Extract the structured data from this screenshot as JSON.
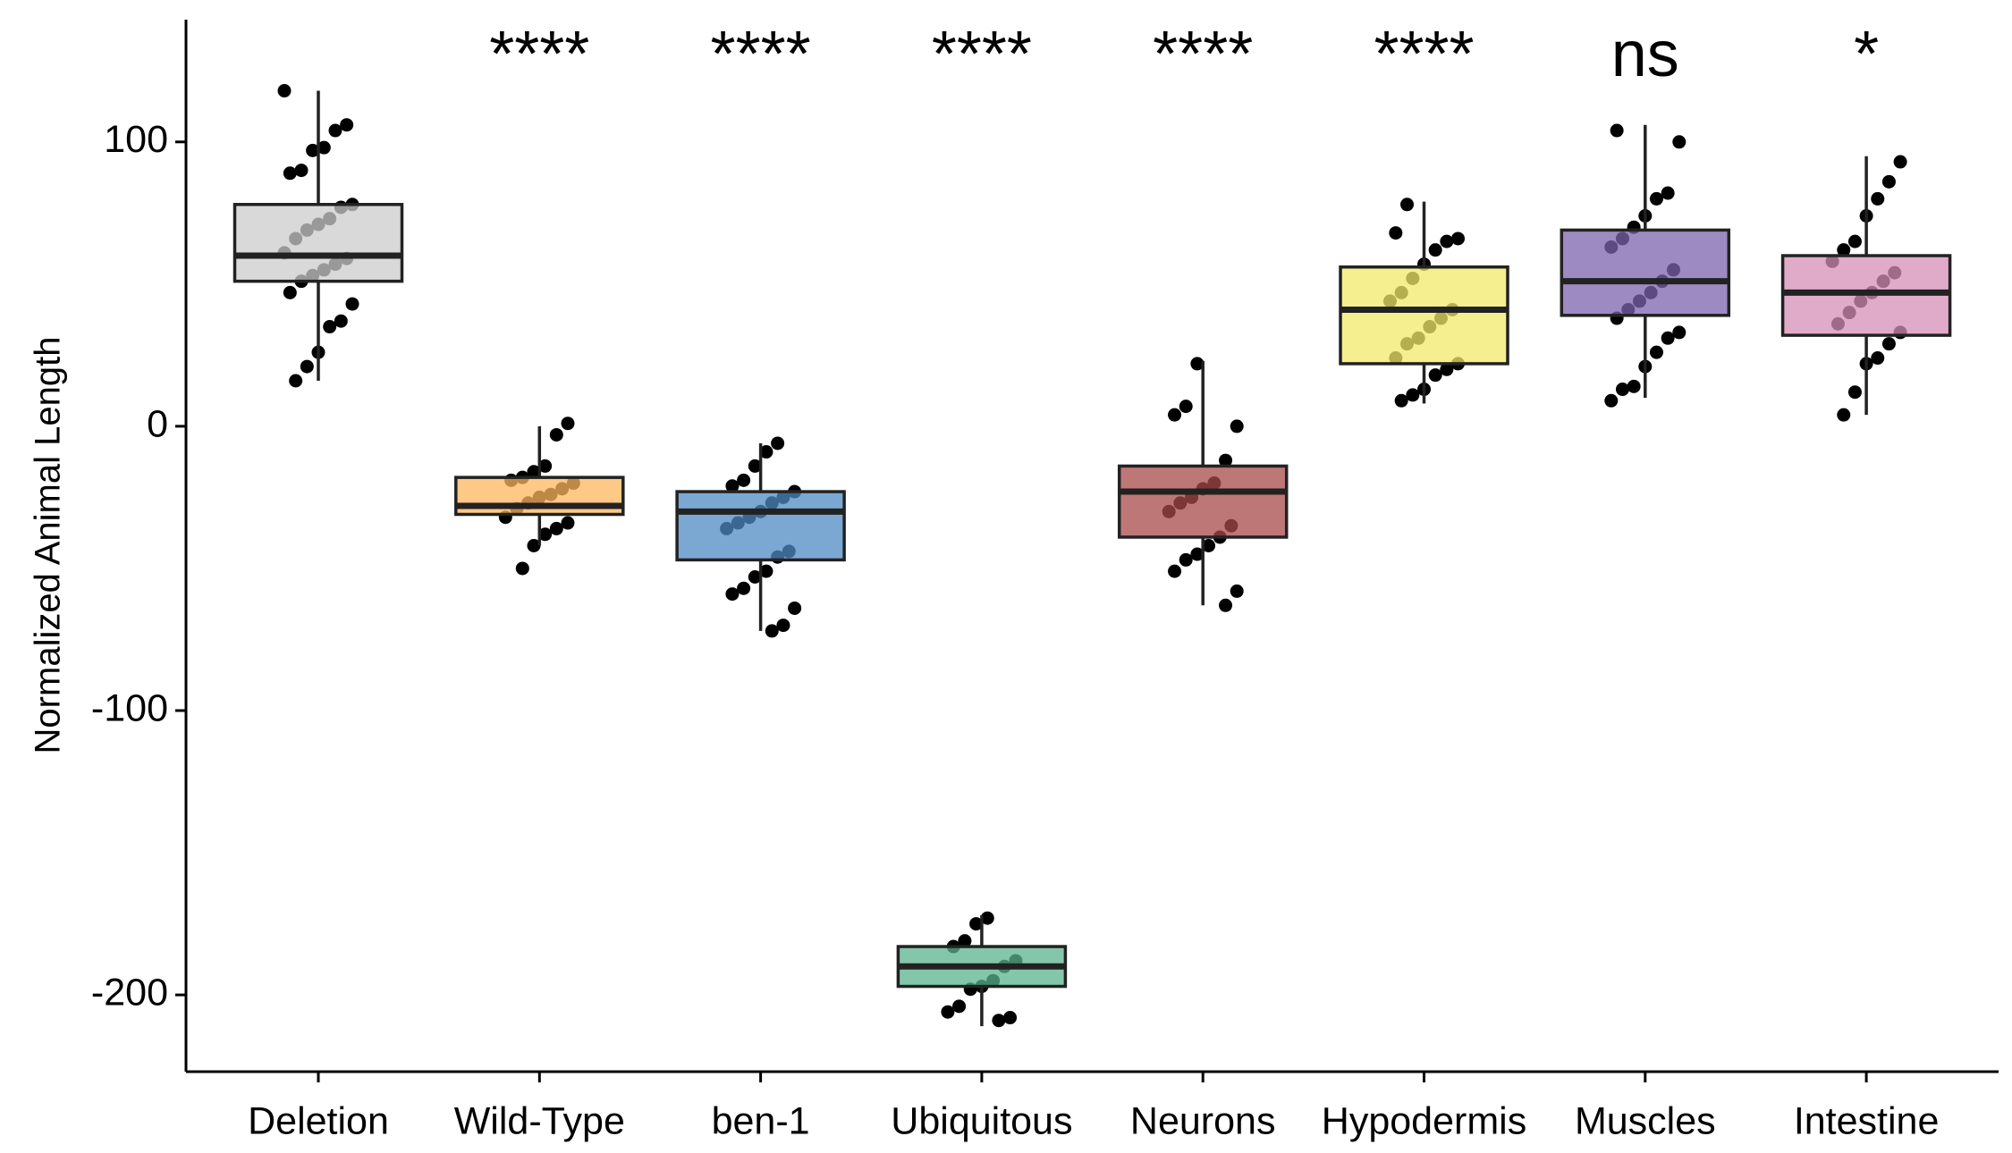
{
  "chart_data": {
    "type": "box",
    "y_label": "Normalized Animal Length",
    "categories": [
      "Deletion",
      "Wild-Type",
      "ben-1",
      "Ubiquitous",
      "Neurons",
      "Hypodermis",
      "Muscles",
      "Intestine"
    ],
    "annotations": [
      null,
      "****",
      "****",
      "****",
      "****",
      "****",
      "ns",
      "*"
    ],
    "colors": [
      "#cccccc",
      "#fdb55f",
      "#4f8bc4",
      "#5bb38f",
      "#a84a4a",
      "#f1e96a",
      "#7e63ad",
      "#d58fb7"
    ],
    "whisker_low": [
      16,
      -42,
      -72,
      -211,
      -63,
      8,
      10,
      4
    ],
    "q1": [
      51,
      -31,
      -47,
      -197,
      -39,
      22,
      39,
      32
    ],
    "median": [
      60,
      -28,
      -30,
      -190,
      -23,
      41,
      51,
      47
    ],
    "q3": [
      78,
      -18,
      -23,
      -183,
      -14,
      56,
      69,
      60
    ],
    "whisker_high": [
      118,
      0,
      -6,
      -172,
      23,
      79,
      106,
      95
    ],
    "points": [
      [
        118,
        106,
        104,
        98,
        97,
        90,
        89,
        78,
        77,
        73,
        71,
        69,
        66,
        61,
        59,
        57,
        55,
        53,
        51,
        47,
        43,
        37,
        35,
        26,
        21,
        16
      ],
      [
        1,
        -3,
        -14,
        -16,
        -18,
        -19,
        -20,
        -22,
        -24,
        -25,
        -27,
        -29,
        -32,
        -34,
        -36,
        -38,
        -42,
        -50
      ],
      [
        -6,
        -9,
        -14,
        -19,
        -21,
        -23,
        -25,
        -27,
        -30,
        -32,
        -34,
        -36,
        -44,
        -46,
        -51,
        -53,
        -57,
        -59,
        -64,
        -70,
        -72
      ],
      [
        -173,
        -175,
        -181,
        -183,
        -188,
        -190,
        -195,
        -197,
        -198,
        -204,
        -206,
        -208,
        -209
      ],
      [
        22,
        7,
        4,
        0,
        -12,
        -20,
        -22,
        -25,
        -27,
        -30,
        -35,
        -39,
        -42,
        -45,
        -47,
        -51,
        -58,
        -63
      ],
      [
        78,
        68,
        66,
        65,
        62,
        57,
        52,
        47,
        44,
        41,
        38,
        35,
        31,
        29,
        24,
        22,
        20,
        18,
        13,
        11,
        9
      ],
      [
        104,
        100,
        82,
        80,
        74,
        70,
        66,
        63,
        55,
        51,
        47,
        44,
        41,
        38,
        33,
        31,
        26,
        21,
        14,
        13,
        9
      ],
      [
        93,
        86,
        80,
        74,
        65,
        62,
        58,
        54,
        51,
        47,
        44,
        40,
        36,
        33,
        29,
        24,
        22,
        12,
        4
      ]
    ],
    "ylim": [
      -227,
      143
    ],
    "yticks": [
      -200,
      -100,
      0,
      100
    ],
    "grid": false
  }
}
